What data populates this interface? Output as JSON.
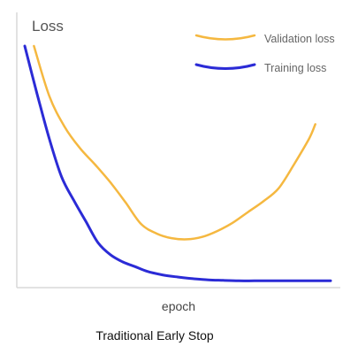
{
  "chart_data": {
    "type": "line",
    "ylabel": "Loss",
    "xlabel": "epoch",
    "caption": "Traditional Early Stop",
    "grid": false,
    "legend_position": "top-right",
    "xlim": [
      0,
      100
    ],
    "ylim": [
      0,
      100
    ],
    "series": [
      {
        "name": "Validation loss",
        "color": "#F5B840",
        "x": [
          3,
          8,
          13,
          18,
          23,
          28,
          33,
          38,
          43,
          48,
          53,
          58,
          63,
          68,
          73,
          78,
          83,
          88,
          93,
          95
        ],
        "values": [
          100,
          79,
          66,
          57,
          50,
          42.5,
          34,
          25,
          21,
          19,
          18.5,
          19.5,
          22,
          25.5,
          30,
          34.5,
          40,
          50,
          61,
          67
        ]
      },
      {
        "name": "Training loss",
        "color": "#2B2BD6",
        "x": [
          0,
          4,
          8,
          12,
          16,
          20,
          24,
          28,
          32,
          36,
          40,
          45,
          50,
          55,
          60,
          65,
          70,
          75,
          80,
          90,
          100
        ],
        "values": [
          100,
          80,
          61,
          45,
          35,
          26,
          17,
          12,
          9,
          7,
          5,
          3.5,
          2.6,
          1.9,
          1.4,
          1.2,
          1.0,
          1.0,
          1.0,
          1.0,
          1.0
        ]
      }
    ]
  }
}
